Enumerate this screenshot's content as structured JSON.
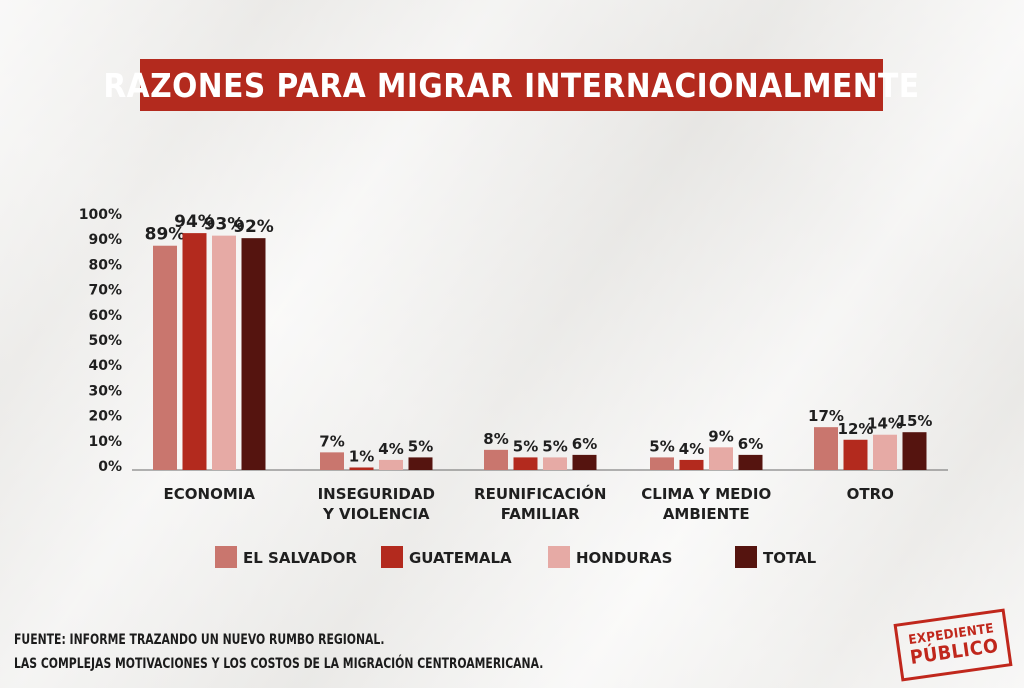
{
  "chart_data": {
    "type": "bar",
    "title": "RAZONES PARA MIGRAR INTERNACIONALMENTE",
    "categories": [
      [
        "ECONOMIA"
      ],
      [
        "INSEGURIDAD",
        "Y VIOLENCIA"
      ],
      [
        "REUNIFICACIÓN",
        "FAMILIAR"
      ],
      [
        "CLIMA Y MEDIO",
        "AMBIENTE"
      ],
      [
        "OTRO"
      ]
    ],
    "series": [
      {
        "name": "EL SALVADOR",
        "color": "#c9766e",
        "values": [
          89,
          7,
          8,
          5,
          17
        ]
      },
      {
        "name": "GUATEMALA",
        "color": "#b32a1e",
        "values": [
          94,
          1,
          5,
          4,
          12
        ]
      },
      {
        "name": "HONDURAS",
        "color": "#e6aaa5",
        "values": [
          93,
          4,
          5,
          9,
          14
        ]
      },
      {
        "name": "TOTAL",
        "color": "#55140f",
        "values": [
          92,
          5,
          6,
          6,
          15
        ]
      }
    ],
    "yticks": [
      "0%",
      "10%",
      "20%",
      "30%",
      "40%",
      "50%",
      "60%",
      "70%",
      "80%",
      "90%",
      "100%"
    ],
    "ylim": [
      0,
      100
    ],
    "xlabel": "",
    "ylabel": "",
    "legend": "bottom",
    "grid": false
  },
  "source": {
    "line1": "FUENTE: INFORME TRAZANDO UN NUEVO RUMBO REGIONAL.",
    "line2": "LAS COMPLEJAS MOTIVACIONES Y LOS COSTOS DE LA MIGRACIÓN CENTROAMERICANA."
  },
  "logo": {
    "line1": "EXPEDIENTE",
    "line2": "PÚBLICO"
  }
}
